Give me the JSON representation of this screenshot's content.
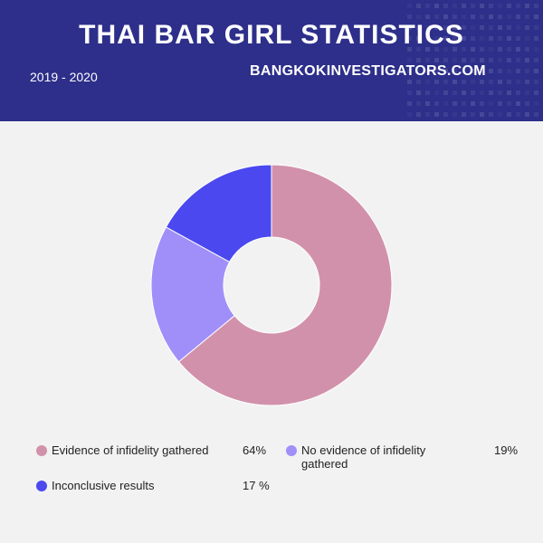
{
  "header": {
    "title": "THAI BAR GIRL STATISTICS",
    "period": "2019 - 2020",
    "site": "BANGKOKINVESTIGATORS.COM"
  },
  "colors": {
    "header_bg": "#2d2f8a",
    "page_bg": "#f2f2f2"
  },
  "chart_data": {
    "type": "pie",
    "title": "THAI BAR GIRL STATISTICS",
    "series": [
      {
        "name": "Evidence of infidelity gathered",
        "value": 64,
        "value_label": "64%",
        "color": "#d291ab"
      },
      {
        "name": "No evidence of infidelity gathered",
        "value": 19,
        "value_label": "19%",
        "color": "#a08ff9"
      },
      {
        "name": "Inconclusive results",
        "value": 17,
        "value_label": "17 %",
        "color": "#4a48ee"
      }
    ],
    "legend_position": "bottom"
  }
}
